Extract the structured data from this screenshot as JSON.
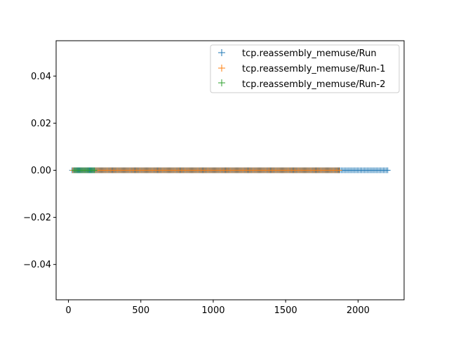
{
  "chart_data": {
    "type": "scatter",
    "marker": "+",
    "title": "",
    "xlabel": "",
    "ylabel": "",
    "xlim": [
      -85,
      2318
    ],
    "ylim": [
      -0.055,
      0.055
    ],
    "grid": false,
    "legend_position": "upper-right",
    "x_ticks": [
      0,
      500,
      1000,
      1500,
      2000
    ],
    "x_tick_labels": [
      "0",
      "500",
      "1000",
      "1500",
      "2000"
    ],
    "y_ticks": [
      -0.04,
      -0.02,
      0.0,
      0.02,
      0.04
    ],
    "y_tick_labels": [
      "−0.04",
      "−0.02",
      "0.00",
      "0.02",
      "0.04"
    ],
    "series": [
      {
        "name": "tcp.reassembly_memuse/Run",
        "color": "#1f77b4",
        "x_start": 25,
        "x_end": 2210,
        "x_step": 10,
        "y": 0
      },
      {
        "name": "tcp.reassembly_memuse/Run-1",
        "color": "#ff7f0e",
        "x_start": 30,
        "x_end": 1870,
        "x_step": 10,
        "y": 0
      },
      {
        "name": "tcp.reassembly_memuse/Run-2",
        "color": "#2ca02c",
        "x_start": 40,
        "x_end": 180,
        "x_step": 10,
        "y": 0
      }
    ]
  }
}
